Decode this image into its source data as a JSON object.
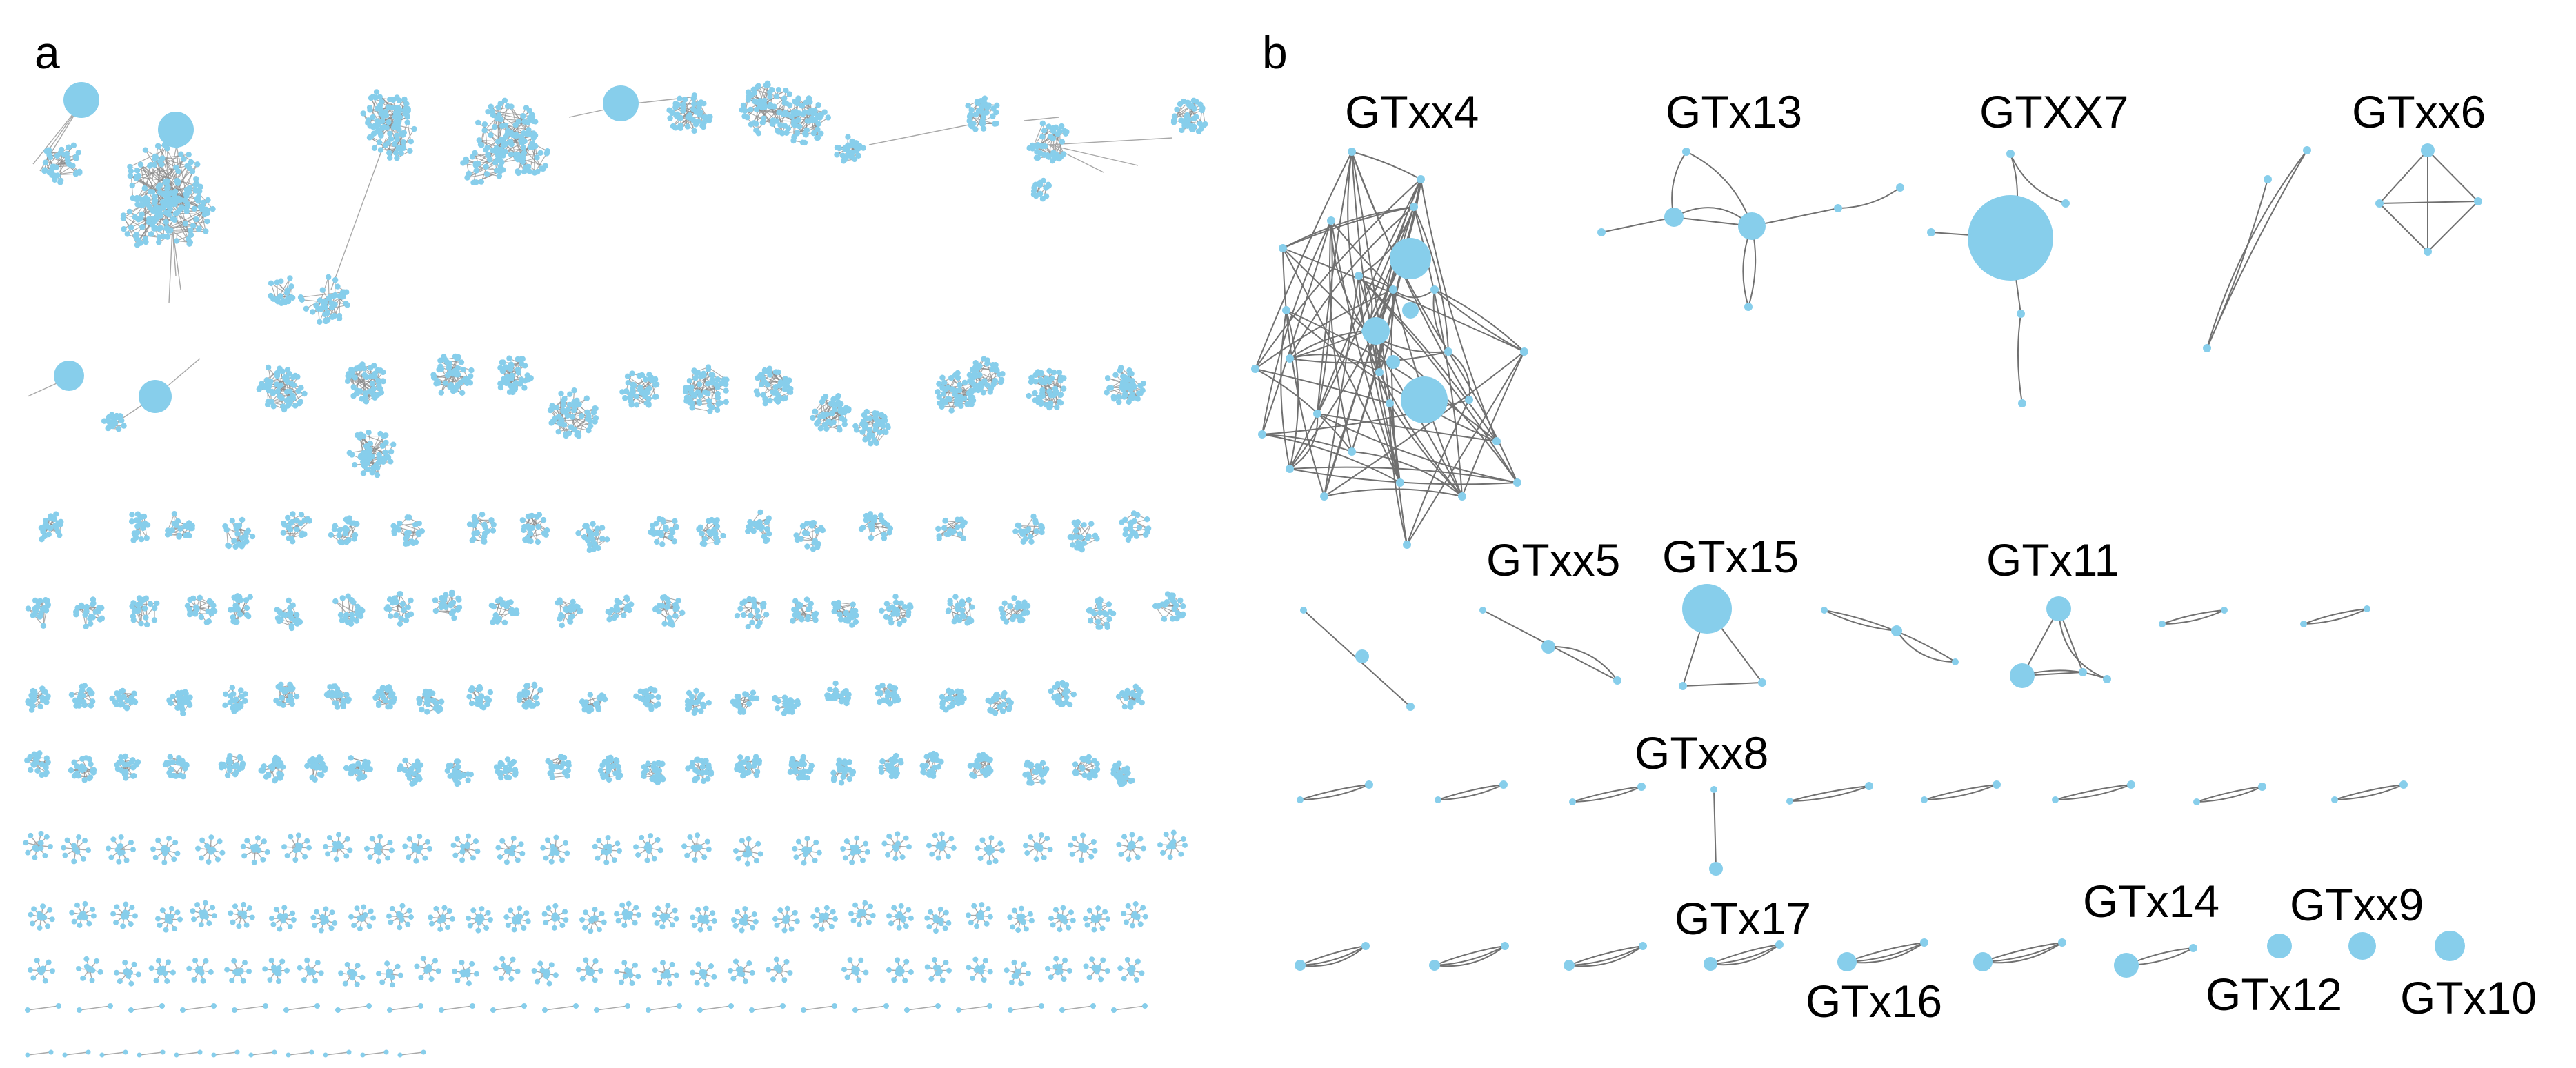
{
  "colors": {
    "node_fill": "#87CEEB",
    "node_stroke": "#6fb5d6",
    "edge_panel_a": "#a8a8a8",
    "edge_panel_b": "#707070",
    "dense_core": "#8a8a8a"
  },
  "panel_a": {
    "letter": "a"
  },
  "panel_b": {
    "letter": "b",
    "network_labels": [
      "GTxx4",
      "GTx13",
      "GTXX7",
      "GTxx6",
      "GTxx5",
      "GTx15",
      "GTx11",
      "GTxx8",
      "GTx17",
      "GTx16",
      "GTx14",
      "GTxx9",
      "GTx12",
      "GTx10"
    ]
  }
}
